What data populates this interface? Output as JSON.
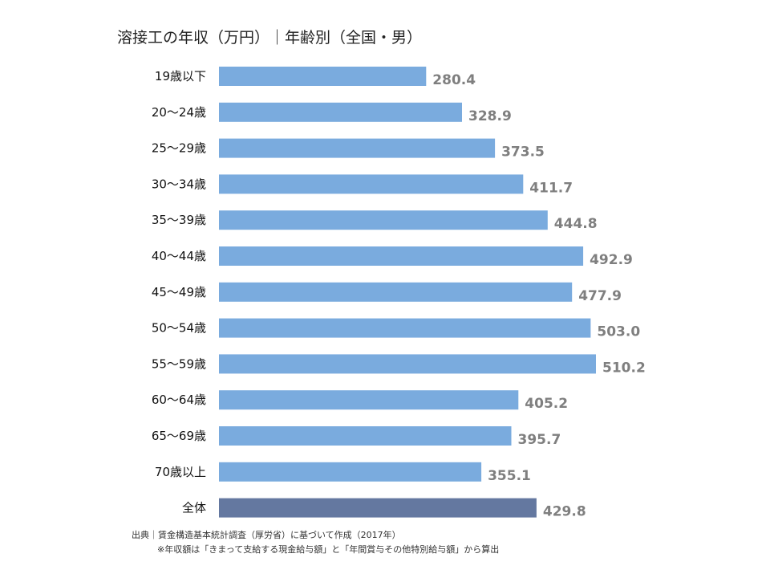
{
  "chart_data": {
    "type": "bar",
    "orientation": "horizontal",
    "title": "溶接工の年収（万円）｜年齢別（全国・男）",
    "categories": [
      "19歳以下",
      "20～24歳",
      "25～29歳",
      "30～34歳",
      "35～39歳",
      "40～44歳",
      "45～49歳",
      "50～54歳",
      "55～59歳",
      "60～64歳",
      "65～69歳",
      "70歳以上",
      "全体"
    ],
    "values": [
      280.4,
      328.9,
      373.5,
      411.7,
      444.8,
      492.9,
      477.9,
      503.0,
      510.2,
      405.2,
      395.7,
      355.1,
      429.8
    ],
    "value_labels": [
      "280.4",
      "328.9",
      "373.5",
      "411.7",
      "444.8",
      "492.9",
      "477.9",
      "503.0",
      "510.2",
      "405.2",
      "395.7",
      "355.1",
      "429.8"
    ],
    "xlim": [
      0,
      510.2
    ],
    "grid": false,
    "colors": {
      "bar": "#7aabde",
      "total_bar": "#6478a0",
      "value_label": "#7f7f7f"
    }
  },
  "notes": {
    "source": "出典｜賃金構造基本統計調査（厚労省）に基づいて作成（2017年）",
    "calculation": "※年収額は「きまって支給する現金給与額」と「年間賞与その他特別給与額」から算出"
  }
}
